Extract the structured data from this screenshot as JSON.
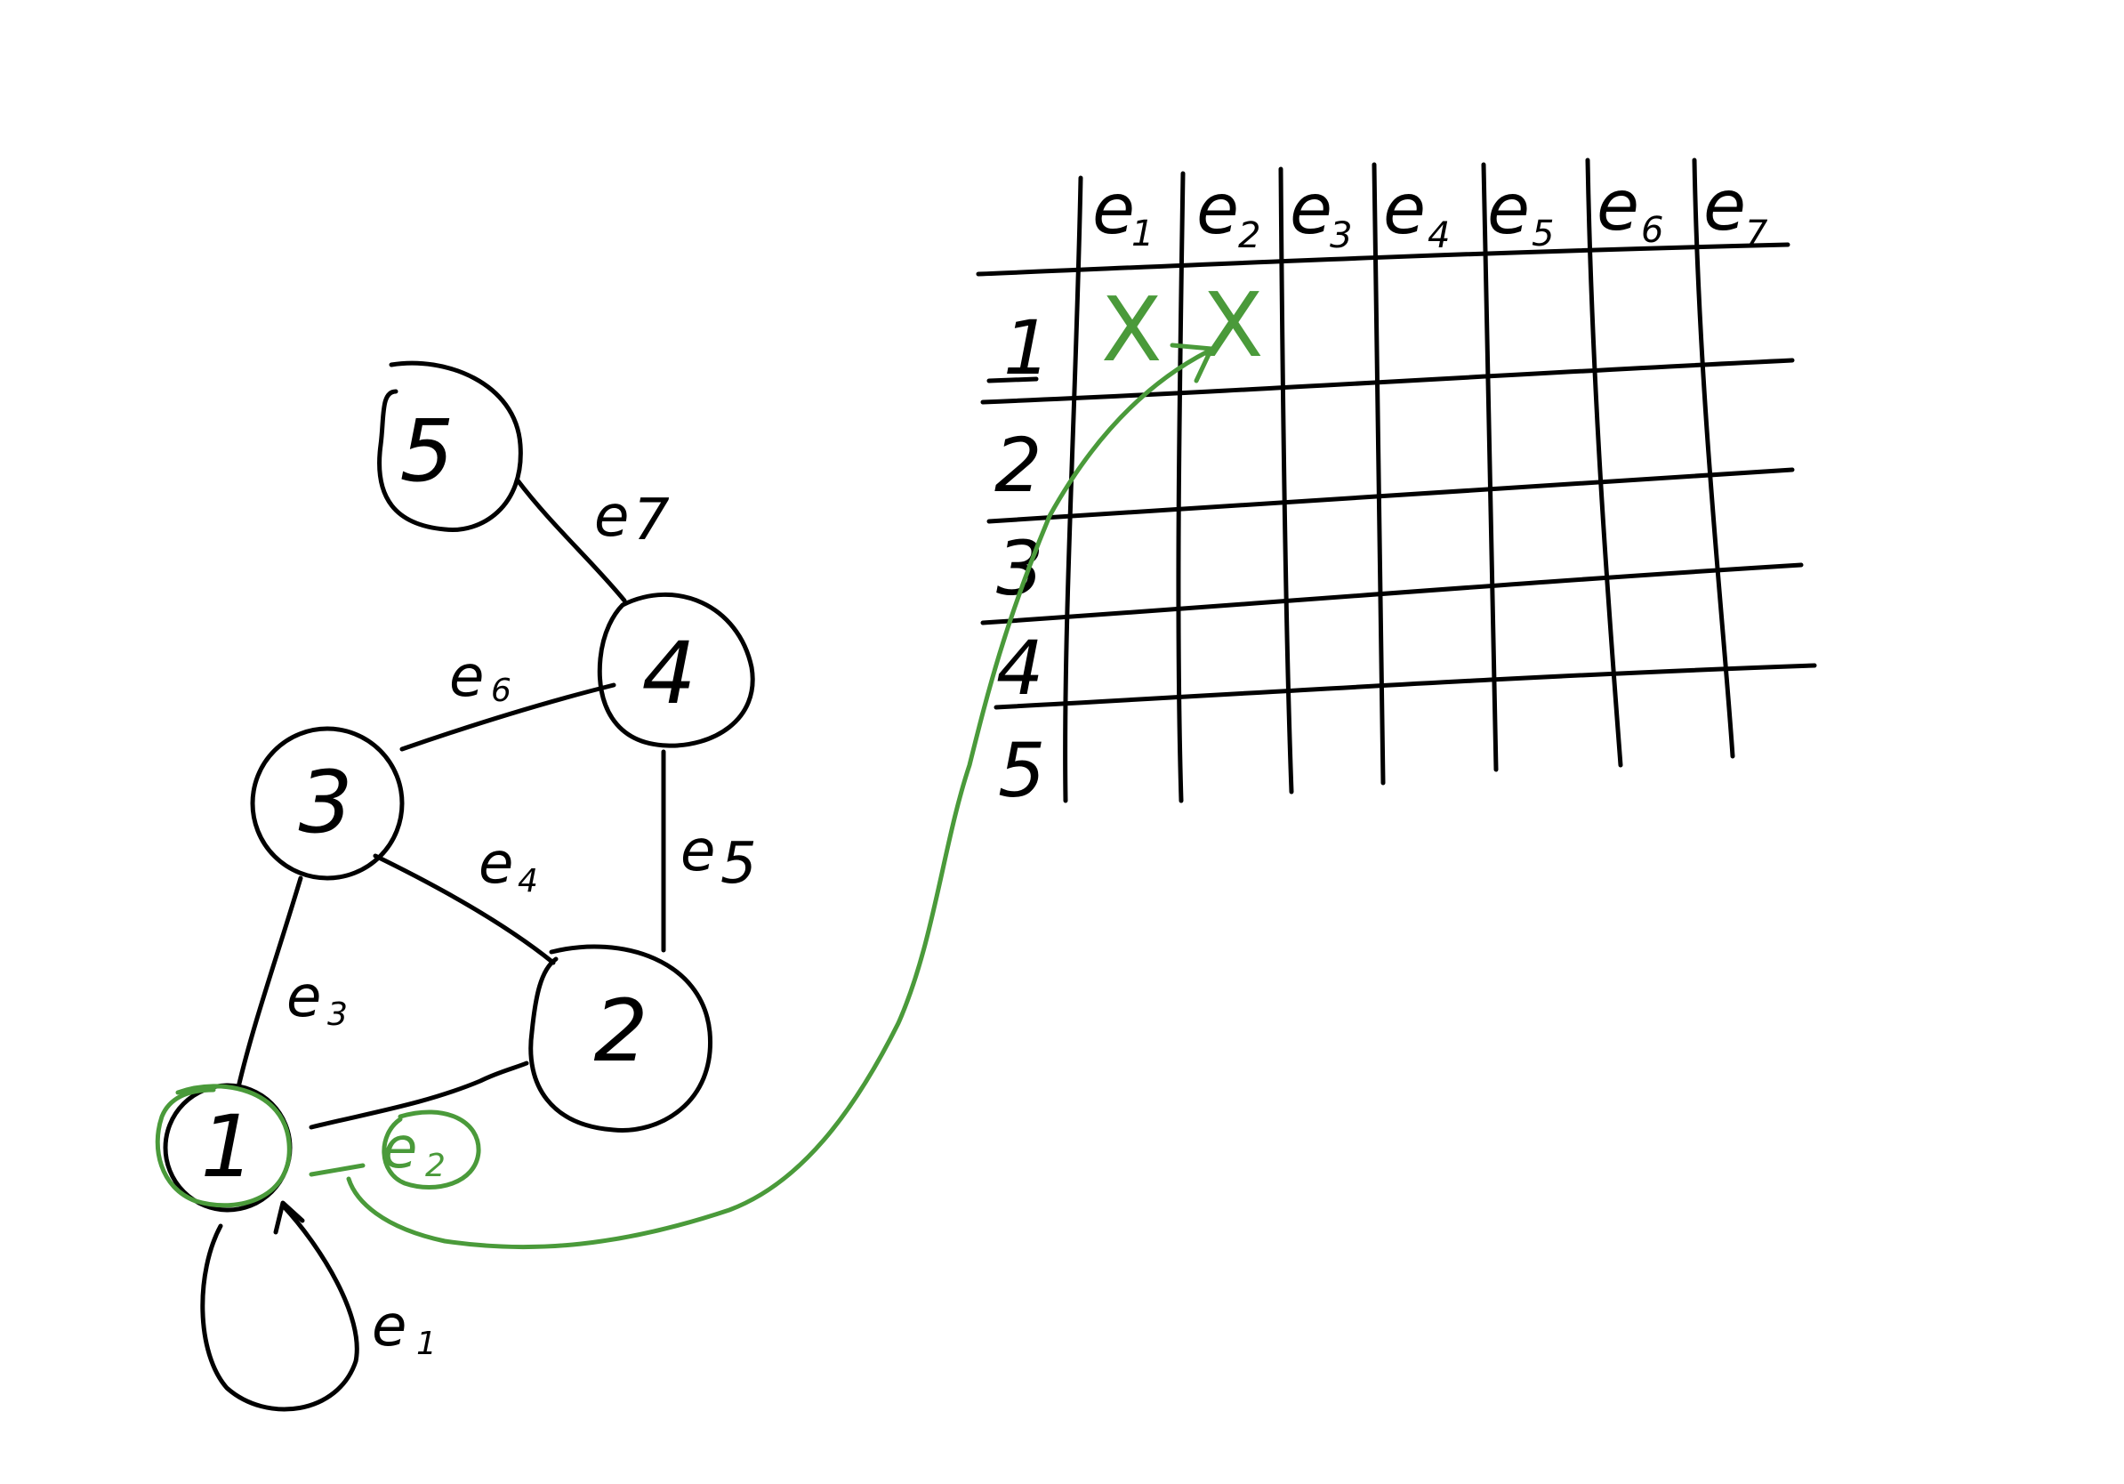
{
  "graph": {
    "nodes": [
      {
        "id": "5",
        "label": "5"
      },
      {
        "id": "4",
        "label": "4"
      },
      {
        "id": "3",
        "label": "3"
      },
      {
        "id": "2",
        "label": "2"
      },
      {
        "id": "1",
        "label": "1",
        "highlighted": true
      }
    ],
    "edges": [
      {
        "id": "e1",
        "base": "e",
        "sub": "1",
        "from": "1",
        "to": "1"
      },
      {
        "id": "e2",
        "base": "e",
        "sub": "2",
        "from": "1",
        "to": "2",
        "highlighted": true
      },
      {
        "id": "e3",
        "base": "e",
        "sub": "3",
        "from": "1",
        "to": "3"
      },
      {
        "id": "e4",
        "base": "e",
        "sub": "4",
        "from": "3",
        "to": "2"
      },
      {
        "id": "e5",
        "base": "e",
        "sub": "5",
        "from": "2",
        "to": "4"
      },
      {
        "id": "e6",
        "base": "e",
        "sub": "6",
        "from": "3",
        "to": "4"
      },
      {
        "id": "e7",
        "base": "e",
        "sub": "7",
        "from": "4",
        "to": "5"
      }
    ]
  },
  "matrix": {
    "columns": [
      {
        "base": "e",
        "sub": "1"
      },
      {
        "base": "e",
        "sub": "2"
      },
      {
        "base": "e",
        "sub": "3"
      },
      {
        "base": "e",
        "sub": "4"
      },
      {
        "base": "e",
        "sub": "5"
      },
      {
        "base": "e",
        "sub": "6"
      },
      {
        "base": "e",
        "sub": "7"
      }
    ],
    "rows": [
      "1",
      "2",
      "3",
      "4",
      "5"
    ],
    "marks": [
      {
        "row": "1",
        "col": "e1",
        "symbol": "X"
      },
      {
        "row": "1",
        "col": "e2",
        "symbol": "X"
      }
    ]
  },
  "colors": {
    "ink": "#000000",
    "highlight": "#4a9a3a",
    "background": "#ffffff"
  }
}
